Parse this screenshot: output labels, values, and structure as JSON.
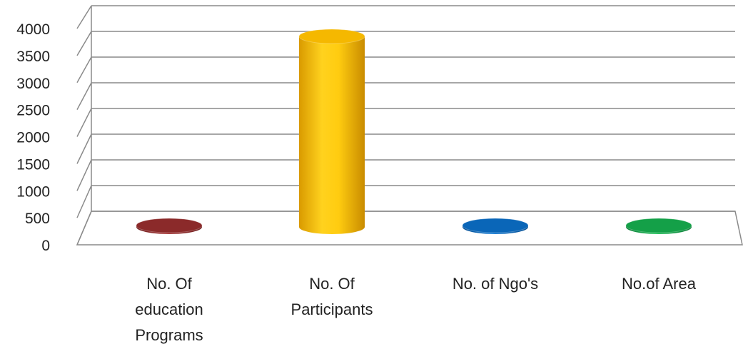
{
  "chart_data": {
    "type": "bar",
    "style": "3d-cylinder",
    "categories": [
      [
        "No. Of",
        "education",
        "Programs"
      ],
      [
        "No. Of",
        "Participants"
      ],
      [
        "No. of Ngo's"
      ],
      [
        "No.of Area"
      ]
    ],
    "values": [
      15,
      3680,
      8,
      20
    ],
    "colors": [
      "#8b2a2a",
      "#f5b800",
      "#0a66b8",
      "#14a048"
    ],
    "ylim": [
      0,
      4000
    ],
    "yticks": [
      "0",
      "500",
      "1000",
      "1500",
      "2000",
      "2500",
      "3000",
      "3500",
      "4000"
    ],
    "grid": true,
    "legend": false
  }
}
